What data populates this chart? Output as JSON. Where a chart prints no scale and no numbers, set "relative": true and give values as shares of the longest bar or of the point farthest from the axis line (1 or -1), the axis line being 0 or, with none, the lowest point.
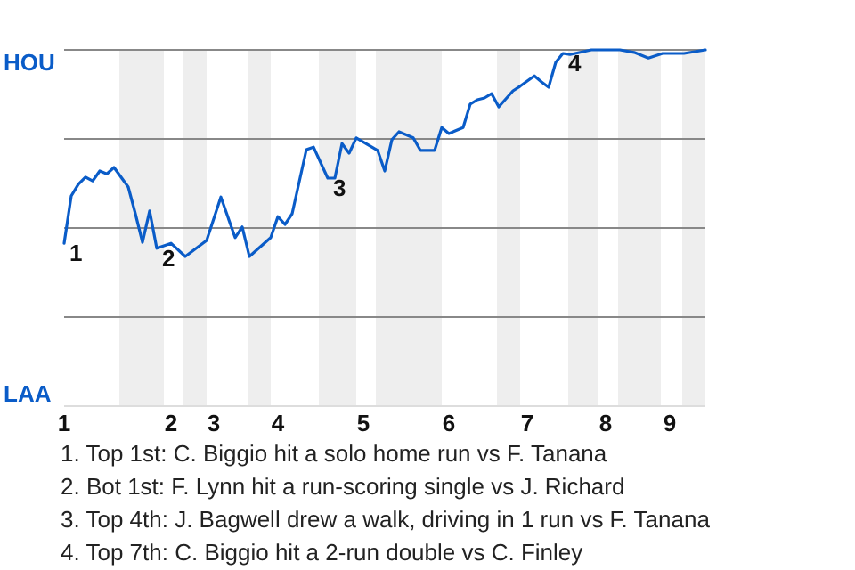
{
  "chart_data": {
    "type": "line",
    "relative": true,
    "categories": [
      "1",
      null,
      null,
      null,
      null,
      null,
      null,
      null,
      null,
      null,
      null,
      null,
      null,
      null,
      null,
      "2",
      null,
      null,
      null,
      null,
      null,
      "3",
      null,
      null,
      null,
      null,
      null,
      null,
      null,
      null,
      "4",
      null,
      null,
      null,
      null,
      null,
      null,
      null,
      null,
      null,
      null,
      null,
      "5",
      null,
      null,
      null,
      null,
      null,
      null,
      null,
      null,
      null,
      null,
      null,
      "6",
      null,
      null,
      null,
      null,
      null,
      null,
      null,
      null,
      null,
      null,
      "7",
      null,
      null,
      null,
      null,
      null,
      null,
      null,
      null,
      null,
      null,
      "8",
      null,
      null,
      null,
      null,
      null,
      null,
      null,
      null,
      "9",
      null,
      null,
      null,
      null,
      null
    ],
    "series": [
      {
        "color": "#0a5cc8",
        "values": [
          0.457,
          0.59,
          0.623,
          0.643,
          0.632,
          0.66,
          0.652,
          0.67,
          null,
          0.615,
          0.54,
          0.46,
          0.548,
          0.443,
          null,
          0.457,
          null,
          0.42,
          null,
          null,
          0.465,
          null,
          0.587,
          null,
          0.473,
          0.503,
          0.42,
          null,
          null,
          0.473,
          0.532,
          0.51,
          0.54,
          null,
          0.72,
          0.727,
          null,
          0.64,
          0.64,
          0.737,
          0.71,
          0.753,
          null,
          null,
          0.718,
          0.66,
          0.748,
          0.77,
          null,
          0.753,
          0.718,
          null,
          0.718,
          0.782,
          0.765,
          null,
          0.782,
          0.848,
          0.86,
          0.865,
          0.877,
          0.84,
          null,
          0.885,
          0.898,
          null,
          0.927,
          0.91,
          0.895,
          0.965,
          0.99,
          0.987,
          null,
          null,
          1,
          null,
          null,
          null,
          1,
          null,
          0.993,
          null,
          0.977,
          null,
          0.99,
          null,
          null,
          0.99,
          null,
          null,
          1
        ]
      }
    ],
    "marker": "none",
    "line_style": "solid",
    "grid": "y",
    "annotations": [
      "HOU",
      "LAA",
      {
        "text": "1",
        "x": "1",
        "y": 0.457
      },
      {
        "text": "2",
        "y": 0.443
      },
      {
        "text": "3",
        "y": 0.64
      },
      {
        "text": "4",
        "y": 0.99
      },
      "1. Top 1st: C. Biggio hit a solo home run vs F. Tanana",
      "2. Bot 1st: F. Lynn hit a run-scoring single vs J. Richard",
      "3. Top 4th: J. Bagwell drew a walk, driving in 1 run vs F. Tanana",
      "4. Top 7th: C. Biggio hit a 2-run double vs C. Finley"
    ]
  }
}
